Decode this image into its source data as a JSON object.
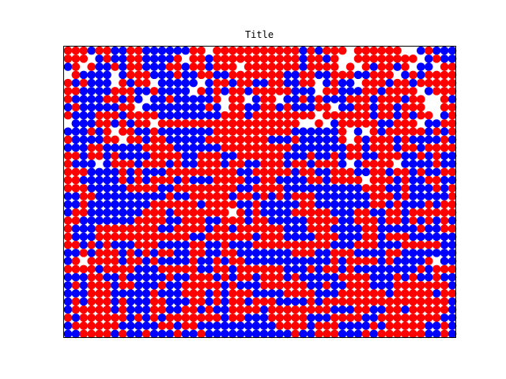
{
  "chart_data": {
    "type": "scatter",
    "title": "Title",
    "xlabel": "",
    "ylabel": "",
    "grid": false,
    "axes_ticks": false,
    "cols": 50,
    "rows": 36,
    "colors": {
      "empty": "#ffffff",
      "red": "#ff0000",
      "blue": "#0000ff"
    },
    "legend": {
      "0": "empty",
      "1": "red",
      "2": "blue"
    },
    "cells": [
      "11121122112222221101111111111121211101111110021222",
      "11102122112222101121111111111121121001111111102122",
      "21012212112221121121110111111121111010121121022011",
      "01222202111222122112211111112211221112211102121111",
      "12122201211022222021121122112211021220111211211111",
      "11222211122122220121211211111222011222112111102111",
      "12222112120221222221011021102212122211121112110012",
      "21222221102222222212011221121222110221121121110011",
      "12221112111122222222111211111111011111121121211021",
      "02221121211011111111111111111100102111112211102211",
      "22212101122122222221111111111222222102012111112121",
      "12222110112112222211111111222122222101211121222212",
      "22211222221111222222111111111222222211211121121111",
      "11211212222111122111221111112221221211221112212122",
      "12220211121112122111211221112112111202111102222122",
      "11122221212221111111112211111211221112211211212211",
      "11222221212111212221111221122221121111011121221122",
      "11122222111122111111112211112222222222111221222121",
      "22112222222221221111121121212111222222211121222221",
      "22122222222111111211112212222211222222211212221211",
      "21122222221112111111101212222111112221122112111111",
      "11222222211112211122111211222221111221112112121212",
      "12221111111122111121121111112221112222112222212211",
      "12221111111111112211111121112222111222112111222222",
      "11212122211122221122122211111111112221112221111122",
      "22121112121211221122112222222111221112222112222222",
      "21011112112122221221211222222222221211112122221022",
      "11112111122211111221121111112221211212222222212111",
      "22211221222221221112121121112122222111122212122122",
      "21211121122212211111212221111112212211122211111112",
      "22211122222122211121211122221111222111111211111211",
      "21211121222112221121211211122221211111111111111112",
      "21111121222112211212211112111111112221122112111112",
      "12111111212121111111211222111112221111221111111122",
      "21111112222211211222222222211112111222212111112212",
      "22111121221222122122222222222122111222121111112212"
    ]
  }
}
